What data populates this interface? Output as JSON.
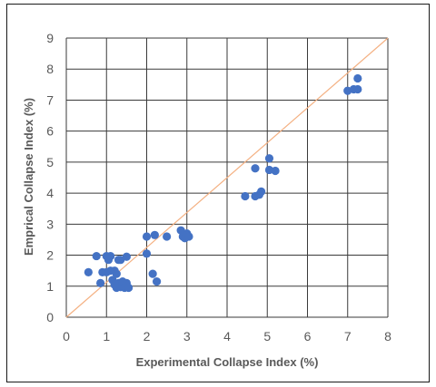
{
  "chart_data": {
    "type": "scatter",
    "title": "",
    "xlabel": "Experimental Collapse Index (%)",
    "ylabel": "Emprical Collapse Index (%)",
    "xlim": [
      0,
      8
    ],
    "ylim": [
      0,
      9
    ],
    "x_ticks": [
      "0",
      "1",
      "2",
      "3",
      "4",
      "5",
      "6",
      "7",
      "8"
    ],
    "y_ticks": [
      "0",
      "1",
      "2",
      "3",
      "4",
      "5",
      "6",
      "7",
      "8",
      "9"
    ],
    "grid": true,
    "legend": "none",
    "reference_line": {
      "from": [
        0,
        0
      ],
      "to": [
        8,
        9
      ],
      "color": "#F4B183"
    },
    "marker_color": "#4472C4",
    "points": [
      [
        0.55,
        1.45
      ],
      [
        0.75,
        1.97
      ],
      [
        0.85,
        1.1
      ],
      [
        0.9,
        1.45
      ],
      [
        1.0,
        1.45
      ],
      [
        1.0,
        1.97
      ],
      [
        1.05,
        1.85
      ],
      [
        1.1,
        1.97
      ],
      [
        1.1,
        1.5
      ],
      [
        1.15,
        1.2
      ],
      [
        1.2,
        1.05
      ],
      [
        1.2,
        1.5
      ],
      [
        1.25,
        1.4
      ],
      [
        1.25,
        0.95
      ],
      [
        1.3,
        1.85
      ],
      [
        1.3,
        1.1
      ],
      [
        1.35,
        0.97
      ],
      [
        1.35,
        1.85
      ],
      [
        1.4,
        1.05
      ],
      [
        1.4,
        1.15
      ],
      [
        1.45,
        1.05
      ],
      [
        1.45,
        0.95
      ],
      [
        1.5,
        1.95
      ],
      [
        1.5,
        1.1
      ],
      [
        1.55,
        0.95
      ],
      [
        2.0,
        2.6
      ],
      [
        2.0,
        2.05
      ],
      [
        2.15,
        1.4
      ],
      [
        2.2,
        2.65
      ],
      [
        2.25,
        1.15
      ],
      [
        2.5,
        2.6
      ],
      [
        2.85,
        2.8
      ],
      [
        2.9,
        2.6
      ],
      [
        2.95,
        2.55
      ],
      [
        3.0,
        2.7
      ],
      [
        3.05,
        2.6
      ],
      [
        4.45,
        3.9
      ],
      [
        4.7,
        4.8
      ],
      [
        4.7,
        3.9
      ],
      [
        4.8,
        3.95
      ],
      [
        4.85,
        4.05
      ],
      [
        5.05,
        5.12
      ],
      [
        5.05,
        4.75
      ],
      [
        5.2,
        4.72
      ],
      [
        7.0,
        7.3
      ],
      [
        7.15,
        7.35
      ],
      [
        7.25,
        7.35
      ],
      [
        7.25,
        7.7
      ]
    ]
  }
}
